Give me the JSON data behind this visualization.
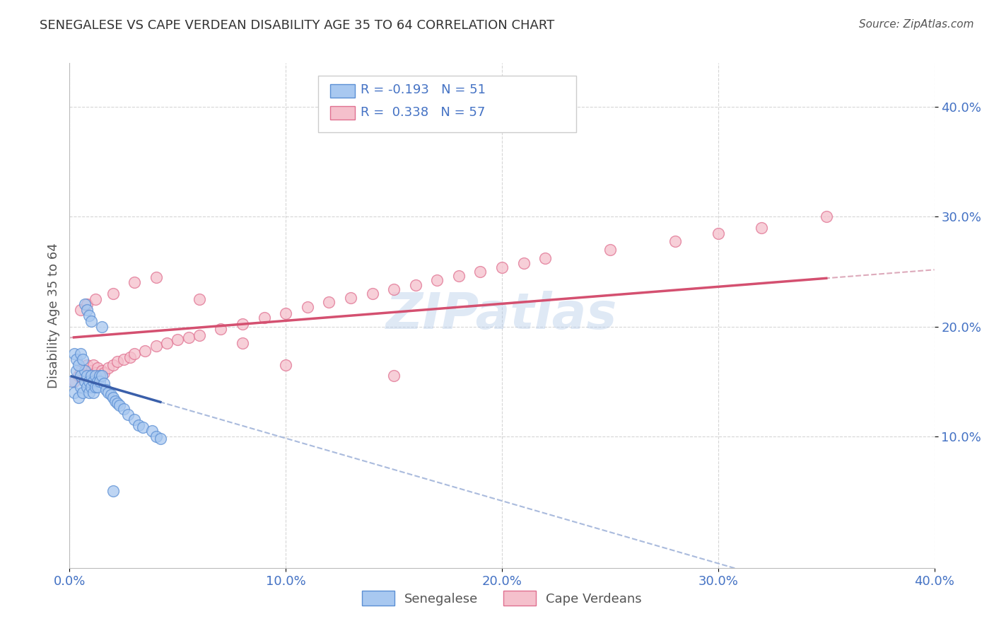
{
  "title": "SENEGALESE VS CAPE VERDEAN DISABILITY AGE 35 TO 64 CORRELATION CHART",
  "source": "Source: ZipAtlas.com",
  "ylabel": "Disability Age 35 to 64",
  "xlim": [
    0.0,
    0.4
  ],
  "ylim": [
    -0.02,
    0.44
  ],
  "xticks": [
    0.0,
    0.1,
    0.2,
    0.3,
    0.4
  ],
  "yticks": [
    0.1,
    0.2,
    0.3,
    0.4
  ],
  "ytick_labels_right": [
    "10.0%",
    "20.0%",
    "30.0%",
    "40.0%"
  ],
  "xtick_labels": [
    "0.0%",
    "10.0%",
    "20.0%",
    "30.0%",
    "40.0%"
  ],
  "legend_r1": "R = -0.193",
  "legend_n1": "N = 51",
  "legend_r2": "R =  0.338",
  "legend_n2": "N = 57",
  "blue_color": "#a8c8f0",
  "blue_edge_color": "#5b8fd4",
  "blue_line_color": "#3a5faa",
  "pink_color": "#f5c0cc",
  "pink_edge_color": "#e07090",
  "pink_line_color": "#d45070",
  "watermark": "ZIPatlas",
  "watermark_color": "#b0c8e8",
  "grid_color": "#cccccc",
  "title_color": "#333333",
  "axis_label_color": "#555555",
  "tick_color_blue": "#4472c4",
  "background_color": "#ffffff",
  "senegalese_x": [
    0.001,
    0.002,
    0.003,
    0.004,
    0.005,
    0.005,
    0.006,
    0.007,
    0.007,
    0.008,
    0.008,
    0.009,
    0.009,
    0.01,
    0.01,
    0.011,
    0.011,
    0.012,
    0.012,
    0.013,
    0.013,
    0.014,
    0.014,
    0.015,
    0.016,
    0.017,
    0.018,
    0.019,
    0.02,
    0.021,
    0.022,
    0.023,
    0.025,
    0.027,
    0.03,
    0.032,
    0.034,
    0.038,
    0.04,
    0.042,
    0.002,
    0.003,
    0.004,
    0.005,
    0.006,
    0.007,
    0.008,
    0.009,
    0.01,
    0.015,
    0.02
  ],
  "senegalese_y": [
    0.15,
    0.14,
    0.16,
    0.135,
    0.145,
    0.155,
    0.14,
    0.15,
    0.16,
    0.145,
    0.155,
    0.14,
    0.15,
    0.145,
    0.155,
    0.14,
    0.15,
    0.145,
    0.155,
    0.15,
    0.145,
    0.155,
    0.15,
    0.155,
    0.148,
    0.142,
    0.14,
    0.138,
    0.135,
    0.132,
    0.13,
    0.128,
    0.125,
    0.12,
    0.115,
    0.11,
    0.108,
    0.105,
    0.1,
    0.098,
    0.175,
    0.17,
    0.165,
    0.175,
    0.17,
    0.22,
    0.215,
    0.21,
    0.205,
    0.2,
    0.05
  ],
  "capeverdean_x": [
    0.002,
    0.004,
    0.005,
    0.006,
    0.007,
    0.008,
    0.009,
    0.01,
    0.011,
    0.012,
    0.013,
    0.014,
    0.015,
    0.016,
    0.018,
    0.02,
    0.022,
    0.025,
    0.028,
    0.03,
    0.035,
    0.04,
    0.045,
    0.05,
    0.055,
    0.06,
    0.07,
    0.08,
    0.09,
    0.1,
    0.11,
    0.12,
    0.13,
    0.14,
    0.15,
    0.16,
    0.17,
    0.18,
    0.19,
    0.2,
    0.21,
    0.22,
    0.25,
    0.28,
    0.3,
    0.32,
    0.35,
    0.005,
    0.008,
    0.012,
    0.02,
    0.03,
    0.04,
    0.06,
    0.08,
    0.1,
    0.15
  ],
  "capeverdean_y": [
    0.15,
    0.155,
    0.16,
    0.155,
    0.16,
    0.165,
    0.155,
    0.16,
    0.165,
    0.158,
    0.162,
    0.155,
    0.16,
    0.158,
    0.162,
    0.165,
    0.168,
    0.17,
    0.172,
    0.175,
    0.178,
    0.182,
    0.185,
    0.188,
    0.19,
    0.192,
    0.198,
    0.202,
    0.208,
    0.212,
    0.218,
    0.222,
    0.226,
    0.23,
    0.234,
    0.238,
    0.242,
    0.246,
    0.25,
    0.254,
    0.258,
    0.262,
    0.27,
    0.278,
    0.285,
    0.29,
    0.3,
    0.215,
    0.22,
    0.225,
    0.23,
    0.24,
    0.245,
    0.225,
    0.185,
    0.165,
    0.155
  ]
}
